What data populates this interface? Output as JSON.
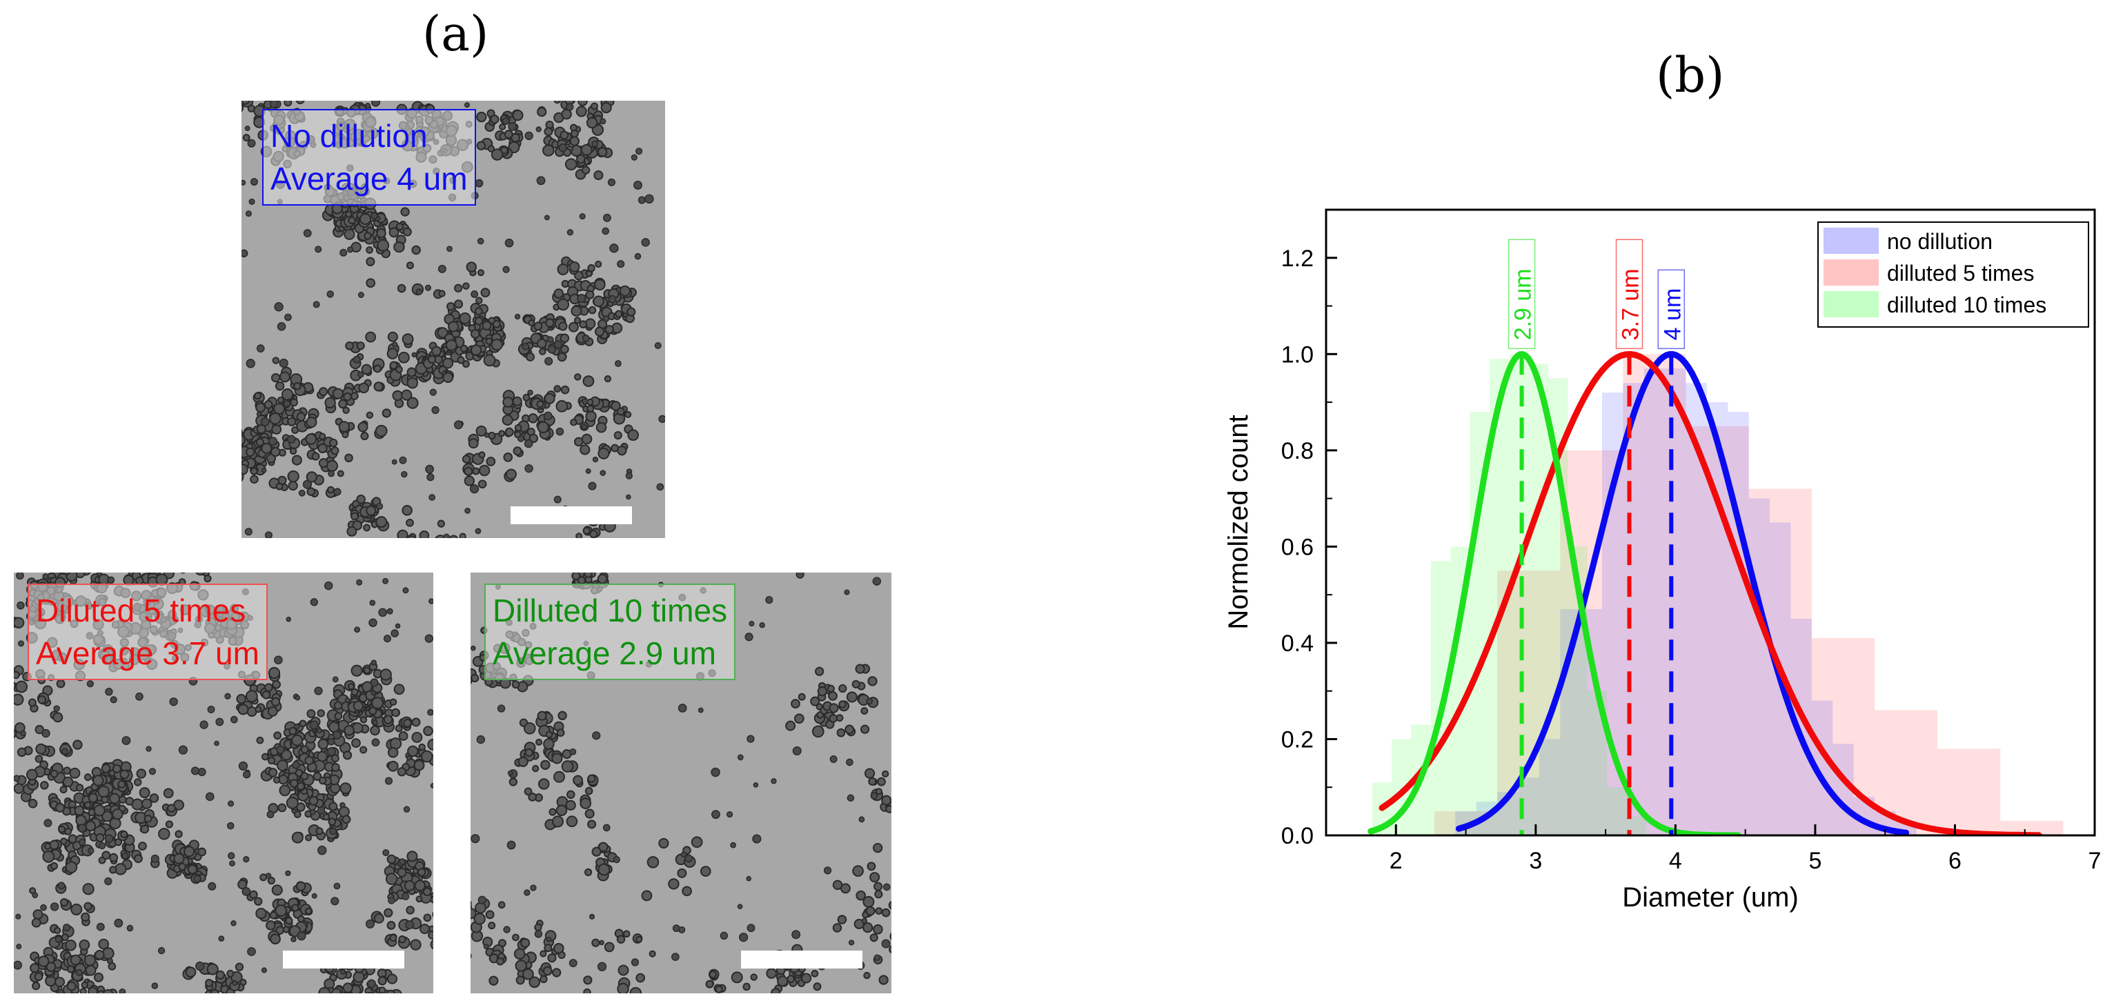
{
  "panels": {
    "a_label": "(a)",
    "b_label": "(b)"
  },
  "micrographs": [
    {
      "line1": "No dillution",
      "line2": "Average 4 um",
      "color": "#1010ee"
    },
    {
      "line1": "Diluted 5 times",
      "line2": "Average 3.7 um",
      "color": "#ee1010"
    },
    {
      "line1": "Dilluted 10 times",
      "line2": "Average 2.9 um",
      "color": "#109010"
    }
  ],
  "chart_data": {
    "type": "bar",
    "xlabel": "Diameter (um)",
    "ylabel": "Normolized count",
    "xlim": [
      1.5,
      7
    ],
    "ylim": [
      0,
      1.3
    ],
    "xticks": [
      "2",
      "3",
      "4",
      "5",
      "6",
      "7"
    ],
    "yticks": [
      "0.0",
      "0.2",
      "0.4",
      "0.6",
      "0.8",
      "1.0",
      "1.2"
    ],
    "legend_position": "top-right",
    "series": [
      {
        "name": "no dillution",
        "color": "#3a3aff",
        "bin_width": 0.15,
        "bins": [
          {
            "x": 2.5,
            "y": 0.05
          },
          {
            "x": 2.65,
            "y": 0.07
          },
          {
            "x": 2.8,
            "y": 0.09
          },
          {
            "x": 2.95,
            "y": 0.12
          },
          {
            "x": 3.1,
            "y": 0.2
          },
          {
            "x": 3.25,
            "y": 0.47
          },
          {
            "x": 3.4,
            "y": 0.47
          },
          {
            "x": 3.55,
            "y": 0.92
          },
          {
            "x": 3.7,
            "y": 0.94
          },
          {
            "x": 3.85,
            "y": 0.97
          },
          {
            "x": 4.0,
            "y": 0.97
          },
          {
            "x": 4.15,
            "y": 0.94
          },
          {
            "x": 4.3,
            "y": 0.9
          },
          {
            "x": 4.45,
            "y": 0.88
          },
          {
            "x": 4.6,
            "y": 0.7
          },
          {
            "x": 4.75,
            "y": 0.65
          },
          {
            "x": 4.9,
            "y": 0.45
          },
          {
            "x": 5.05,
            "y": 0.28
          },
          {
            "x": 5.2,
            "y": 0.19
          },
          {
            "x": 5.35,
            "y": 0.08
          },
          {
            "x": 5.5,
            "y": 0.05
          },
          {
            "x": 5.65,
            "y": 0.03
          }
        ],
        "fit_peak_label": "4 um",
        "gaussian": {
          "mu": 3.97,
          "sigma": 0.52,
          "amp": 1.0,
          "range": [
            2.45,
            5.65
          ]
        }
      },
      {
        "name": "dilluted 5 times",
        "color": "#ff3a3a",
        "bin_width": 0.45,
        "bins": [
          {
            "x": 2.5,
            "y": 0.05
          },
          {
            "x": 2.95,
            "y": 0.55
          },
          {
            "x": 3.4,
            "y": 0.8
          },
          {
            "x": 3.85,
            "y": 1.0
          },
          {
            "x": 4.3,
            "y": 0.85
          },
          {
            "x": 4.75,
            "y": 0.72
          },
          {
            "x": 5.2,
            "y": 0.41
          },
          {
            "x": 5.65,
            "y": 0.26
          },
          {
            "x": 6.1,
            "y": 0.18
          },
          {
            "x": 6.55,
            "y": 0.03
          }
        ],
        "fit_peak_label": "3.7 um",
        "gaussian": {
          "mu": 3.67,
          "sigma": 0.74,
          "amp": 1.0,
          "range": [
            1.9,
            6.6
          ]
        }
      },
      {
        "name": "dilluted 10 times",
        "color": "#3aff3a",
        "bin_width": 0.14,
        "bins": [
          {
            "x": 1.9,
            "y": 0.11
          },
          {
            "x": 2.04,
            "y": 0.2
          },
          {
            "x": 2.18,
            "y": 0.23
          },
          {
            "x": 2.32,
            "y": 0.57
          },
          {
            "x": 2.46,
            "y": 0.6
          },
          {
            "x": 2.6,
            "y": 0.88
          },
          {
            "x": 2.74,
            "y": 0.99
          },
          {
            "x": 2.88,
            "y": 1.0
          },
          {
            "x": 3.02,
            "y": 0.98
          },
          {
            "x": 3.16,
            "y": 0.95
          },
          {
            "x": 3.3,
            "y": 0.6
          },
          {
            "x": 3.44,
            "y": 0.3
          },
          {
            "x": 3.58,
            "y": 0.1
          },
          {
            "x": 3.72,
            "y": 0.04
          }
        ],
        "fit_peak_label": "2.9 um",
        "gaussian": {
          "mu": 2.9,
          "sigma": 0.35,
          "amp": 1.0,
          "range": [
            1.82,
            4.45
          ]
        }
      }
    ]
  }
}
